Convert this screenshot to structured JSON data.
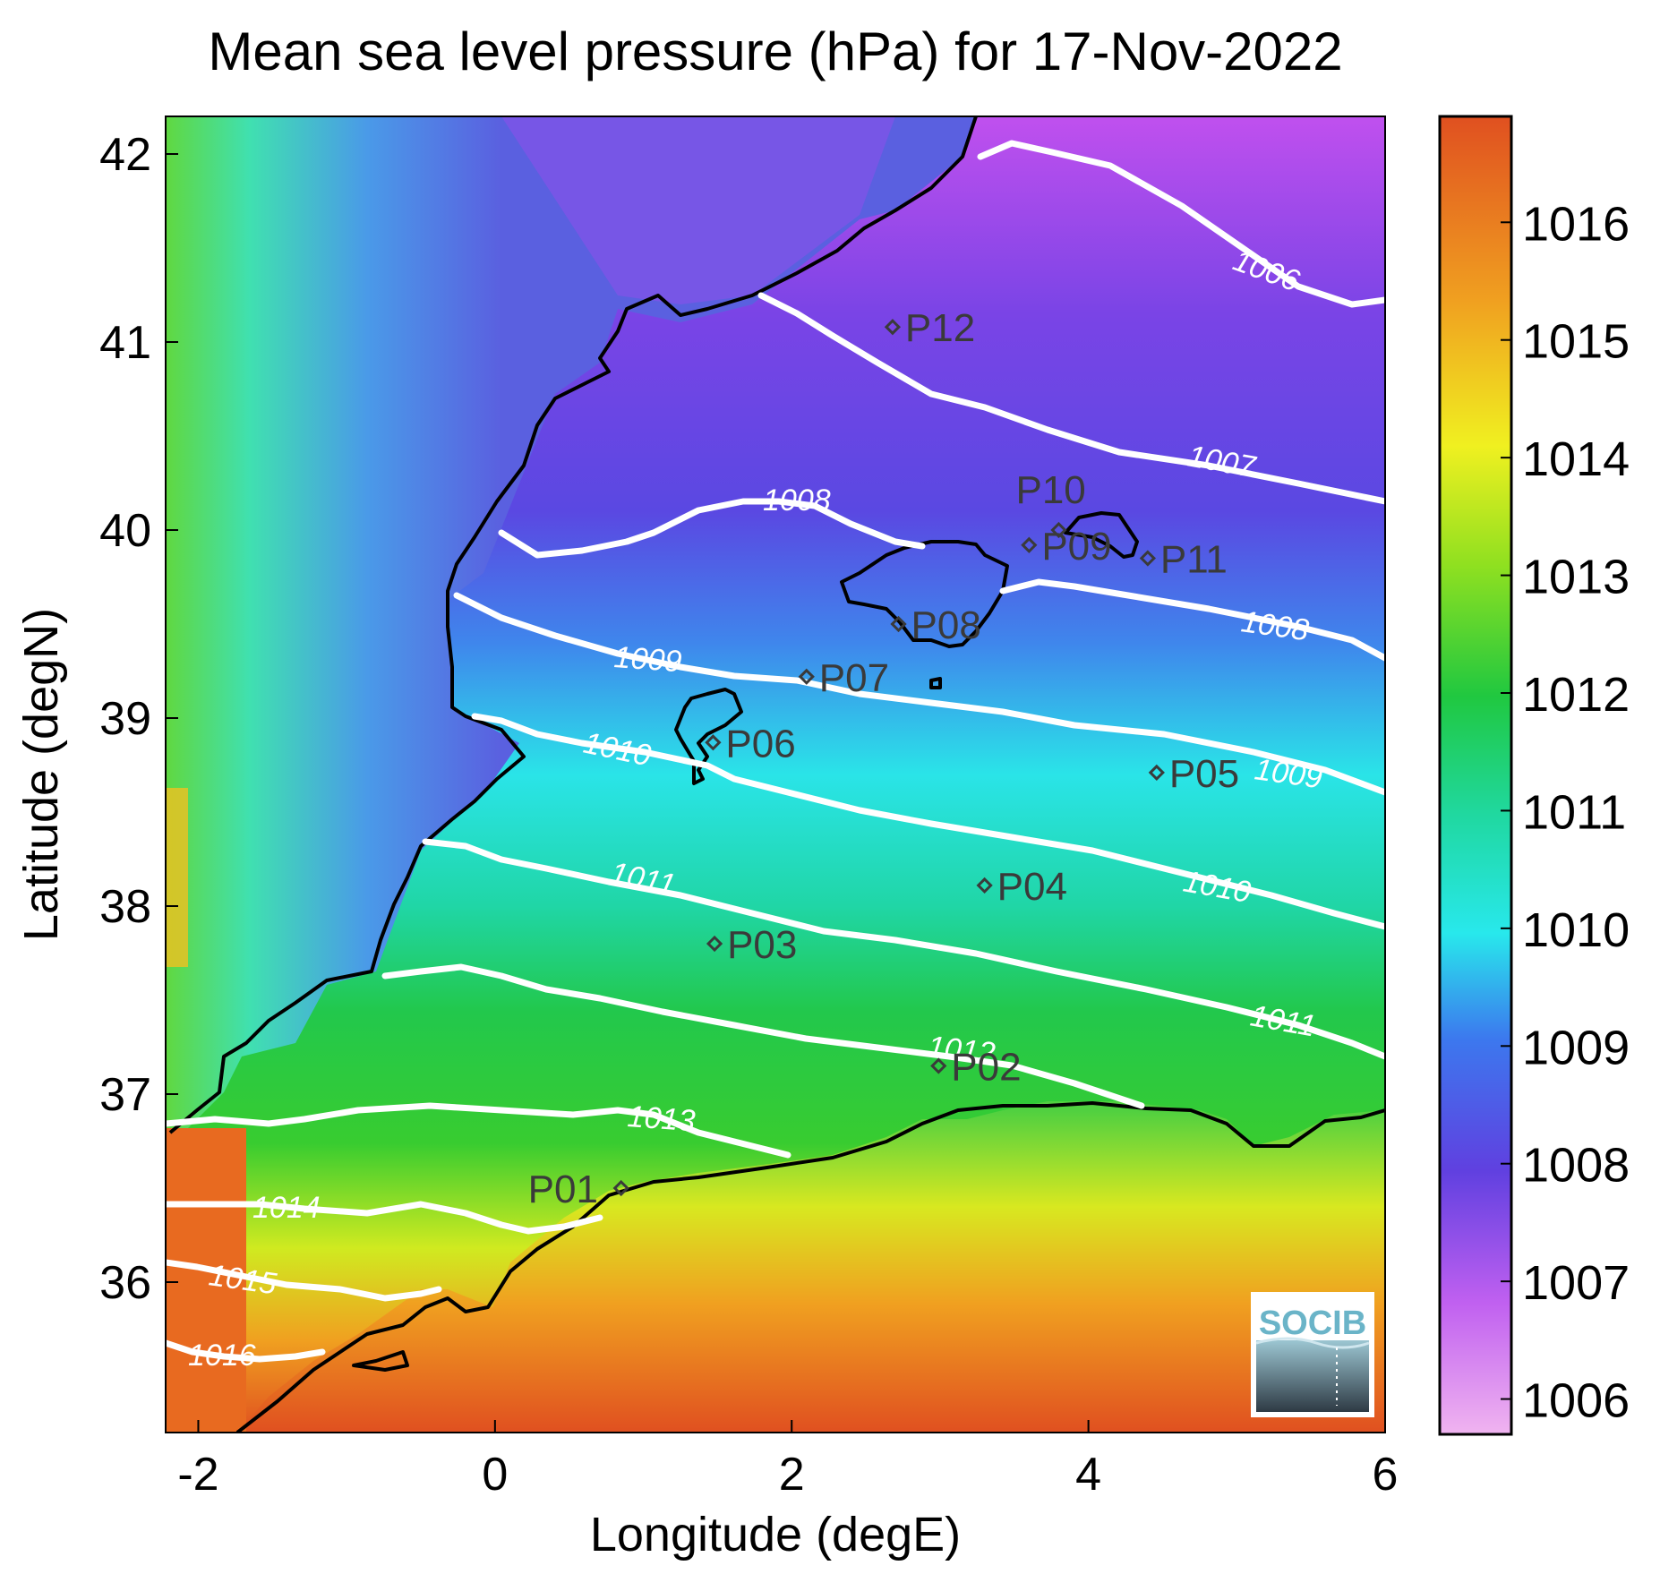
{
  "title": "Mean sea level pressure (hPa) for 17-Nov-2022",
  "map": {
    "xlabel": "Longitude (degE)",
    "ylabel": "Latitude (degN)",
    "xlim": [
      -2.22,
      6.0
    ],
    "ylim": [
      35.2,
      42.2
    ],
    "xticks": [
      "-2",
      "0",
      "2",
      "4",
      "6"
    ],
    "yticks": [
      "36",
      "37",
      "38",
      "39",
      "40",
      "41",
      "42"
    ],
    "logo_text": "SOCIB"
  },
  "colorbar": {
    "range": [
      1005.7,
      1016.9
    ],
    "ticks": [
      "1006",
      "1007",
      "1008",
      "1009",
      "1010",
      "1011",
      "1012",
      "1013",
      "1014",
      "1015",
      "1016"
    ],
    "colors": [
      "#f0b4f0",
      "#c060f0",
      "#6040e0",
      "#3c78ee",
      "#28e8ec",
      "#20d8a0",
      "#20c840",
      "#90e020",
      "#f0f020",
      "#f0a020",
      "#e05020"
    ]
  },
  "contour_labels": [
    "1006",
    "1007",
    "1008",
    "1008",
    "1009",
    "1009",
    "1010",
    "1010",
    "1011",
    "1011",
    "1012",
    "1013",
    "1014",
    "1015",
    "1016"
  ],
  "stations": [
    {
      "name": "P01",
      "lon": 0.85,
      "lat": 36.5
    },
    {
      "name": "P02",
      "lon": 2.99,
      "lat": 37.15
    },
    {
      "name": "P03",
      "lon": 1.48,
      "lat": 37.8
    },
    {
      "name": "P04",
      "lon": 3.3,
      "lat": 38.11
    },
    {
      "name": "P05",
      "lon": 4.46,
      "lat": 38.71
    },
    {
      "name": "P06",
      "lon": 1.47,
      "lat": 38.87
    },
    {
      "name": "P07",
      "lon": 2.1,
      "lat": 39.22
    },
    {
      "name": "P08",
      "lon": 2.72,
      "lat": 39.5
    },
    {
      "name": "P09",
      "lon": 3.6,
      "lat": 39.92
    },
    {
      "name": "P10",
      "lon": 3.8,
      "lat": 40.0
    },
    {
      "name": "P11",
      "lon": 4.4,
      "lat": 39.85
    },
    {
      "name": "P12",
      "lon": 2.68,
      "lat": 41.08
    }
  ]
}
